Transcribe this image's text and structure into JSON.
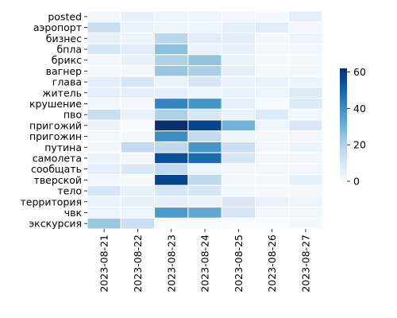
{
  "chart_data": {
    "type": "heatmap",
    "title": "",
    "xlabel": "",
    "ylabel": "",
    "x_categories": [
      "2023-08-21",
      "2023-08-22",
      "2023-08-23",
      "2023-08-24",
      "2023-08-25",
      "2023-08-26",
      "2023-08-27"
    ],
    "y_categories": [
      "posted",
      "аэропорт",
      "бизнес",
      "бпла",
      "брикс",
      "вагнер",
      "глава",
      "житель",
      "крушение",
      "пво",
      "пригожий",
      "пригожин",
      "путина",
      "самолета",
      "сообщать",
      "тверской",
      "тело",
      "территория",
      "чвк",
      "экскурсия"
    ],
    "values": [
      [
        2,
        5,
        3,
        3,
        2,
        1,
        6
      ],
      [
        14,
        4,
        3,
        3,
        5,
        7,
        2
      ],
      [
        5,
        3,
        18,
        7,
        6,
        2,
        3
      ],
      [
        10,
        7,
        26,
        4,
        5,
        2,
        2
      ],
      [
        2,
        5,
        20,
        25,
        4,
        1,
        1
      ],
      [
        1,
        2,
        24,
        21,
        6,
        1,
        2
      ],
      [
        6,
        10,
        4,
        10,
        4,
        4,
        3
      ],
      [
        6,
        6,
        6,
        3,
        4,
        3,
        8
      ],
      [
        2,
        2,
        42,
        38,
        6,
        0,
        8
      ],
      [
        14,
        5,
        20,
        10,
        4,
        8,
        2
      ],
      [
        4,
        0,
        62,
        57,
        30,
        3,
        9
      ],
      [
        2,
        1,
        40,
        16,
        3,
        1,
        2
      ],
      [
        2,
        16,
        17,
        38,
        14,
        2,
        3
      ],
      [
        3,
        2,
        55,
        48,
        10,
        2,
        2
      ],
      [
        6,
        9,
        16,
        3,
        2,
        2,
        2
      ],
      [
        2,
        1,
        57,
        17,
        2,
        1,
        5
      ],
      [
        10,
        5,
        10,
        10,
        2,
        1,
        1
      ],
      [
        4,
        5,
        6,
        4,
        9,
        4,
        3
      ],
      [
        3,
        3,
        37,
        33,
        11,
        2,
        2
      ],
      [
        24,
        14,
        0,
        0,
        0,
        0,
        1
      ]
    ],
    "colorbar": {
      "min": 0,
      "max": 62,
      "ticks": [
        0,
        20,
        40,
        60
      ],
      "colormap": "Blues"
    },
    "x_tick_rotation": "vertical",
    "grid": false,
    "cell_border_color": "#ffffff"
  }
}
